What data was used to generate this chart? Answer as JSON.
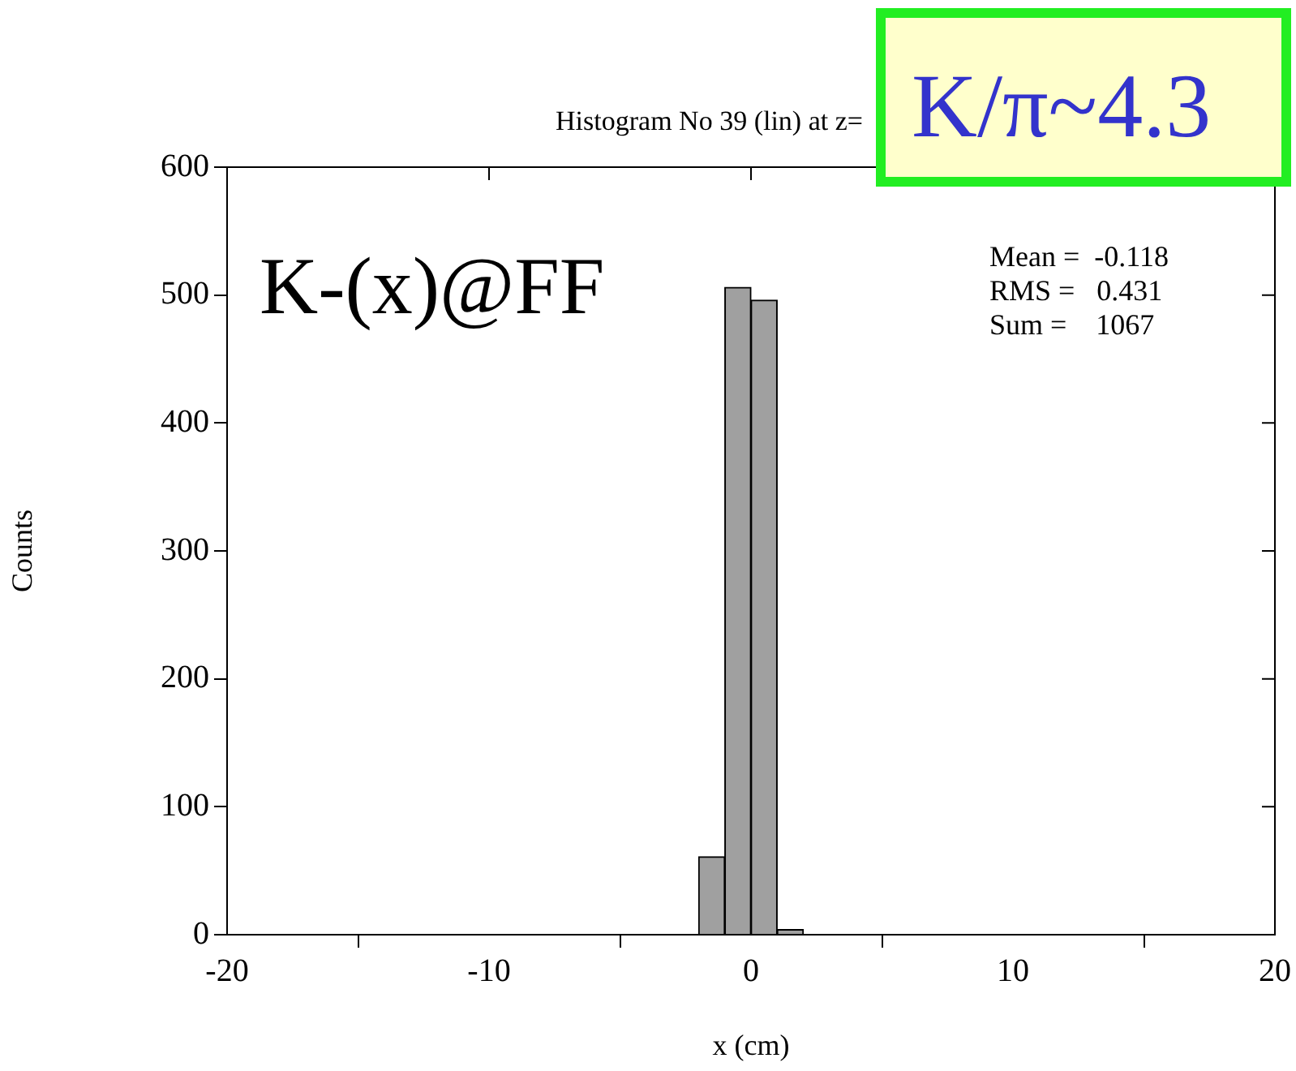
{
  "chart_data": {
    "type": "histogram",
    "title": "Histogram No 39 (lin) at z=",
    "xlabel": "x (cm)",
    "ylabel": "Counts",
    "bins": [
      -2,
      -1,
      0,
      1,
      2
    ],
    "values": [
      61,
      506,
      496,
      4
    ],
    "color": "#a0a0a0",
    "xlim": [
      -20,
      20
    ],
    "xticks": [
      -20,
      -10,
      0,
      10,
      20
    ],
    "ylim": [
      0,
      600
    ],
    "yticks": [
      0,
      100,
      200,
      300,
      400,
      500,
      600
    ],
    "grid": false,
    "legend": false,
    "annotations": [
      "K/π~4.3",
      "K-(x)@FF",
      "Mean =  -0.118",
      "RMS =   0.431",
      "Sum =    1067"
    ]
  }
}
